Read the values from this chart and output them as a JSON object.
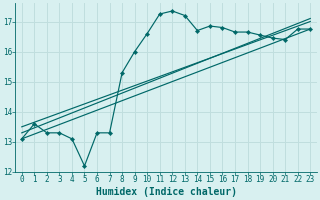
{
  "xlabel": "Humidex (Indice chaleur)",
  "ylabel": "",
  "bg_color": "#d8f0f0",
  "grid_color": "#c0dede",
  "line_color": "#006868",
  "xlim": [
    -0.5,
    23.5
  ],
  "ylim": [
    12,
    17.6
  ],
  "xticks": [
    0,
    1,
    2,
    3,
    4,
    5,
    6,
    7,
    8,
    9,
    10,
    11,
    12,
    13,
    14,
    15,
    16,
    17,
    18,
    19,
    20,
    21,
    22,
    23
  ],
  "yticks": [
    12,
    13,
    14,
    15,
    16,
    17
  ],
  "series1_x": [
    0,
    1,
    2,
    3,
    4,
    5,
    6,
    7,
    8,
    9,
    10,
    11,
    12,
    13,
    14,
    15,
    16,
    17,
    18,
    19,
    20,
    21,
    22,
    23
  ],
  "series1_y": [
    13.1,
    13.6,
    13.3,
    13.3,
    13.1,
    12.2,
    13.3,
    13.3,
    15.3,
    16.0,
    16.6,
    17.25,
    17.35,
    17.2,
    16.7,
    16.85,
    16.8,
    16.65,
    16.65,
    16.55,
    16.45,
    16.4,
    16.75,
    16.75
  ],
  "series2_x": [
    0,
    23
  ],
  "series2_y": [
    13.1,
    16.75
  ],
  "series3_x": [
    0,
    23
  ],
  "series3_y": [
    13.5,
    17.0
  ],
  "series4_x": [
    0,
    23
  ],
  "series4_y": [
    13.3,
    17.1
  ],
  "tick_fontsize": 5.5,
  "xlabel_fontsize": 7.0,
  "marker_size": 2.2,
  "linewidth": 0.85
}
